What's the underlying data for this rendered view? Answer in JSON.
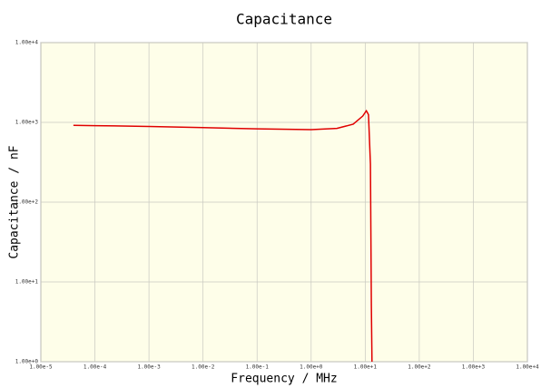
{
  "chart_data": {
    "type": "line",
    "title": "Capacitance",
    "xlabel": "Frequency / MHz",
    "ylabel": "Capacitance / nF",
    "log_x": true,
    "log_y": true,
    "grid": true,
    "background": "#fefee9",
    "xlim": [
      1e-05,
      10000
    ],
    "ylim": [
      1,
      10000
    ],
    "xticks": [
      {
        "value": 1e-05,
        "label": "1.00e-5"
      },
      {
        "value": 0.0001,
        "label": "1.00e-4"
      },
      {
        "value": 0.001,
        "label": "1.00e-3"
      },
      {
        "value": 0.01,
        "label": "1.00e-2"
      },
      {
        "value": 0.1,
        "label": "1.00e-1"
      },
      {
        "value": 1,
        "label": "1.00e+0"
      },
      {
        "value": 10,
        "label": "1.00e+1"
      },
      {
        "value": 100,
        "label": "1.00e+2"
      },
      {
        "value": 1000,
        "label": "1.00e+3"
      },
      {
        "value": 10000,
        "label": "1.00e+4"
      }
    ],
    "yticks": [
      {
        "value": 1,
        "label": "1.00e+0"
      },
      {
        "value": 10,
        "label": "1.00e+1"
      },
      {
        "value": 100,
        "label": "1.00e+2"
      },
      {
        "value": 1000,
        "label": "1.00e+3"
      },
      {
        "value": 10000,
        "label": "1.00e+4"
      }
    ],
    "x": [
      4e-05,
      0.0001,
      0.001,
      0.01,
      0.1,
      1,
      3,
      6,
      9,
      10.5,
      11.5,
      12.5,
      13,
      13.5
    ],
    "series": [
      {
        "name": "Capacitance",
        "color": "#e00000",
        "values": [
          920,
          910,
          890,
          860,
          830,
          810,
          840,
          950,
          1200,
          1400,
          1250,
          300,
          5,
          0.5
        ]
      }
    ]
  }
}
